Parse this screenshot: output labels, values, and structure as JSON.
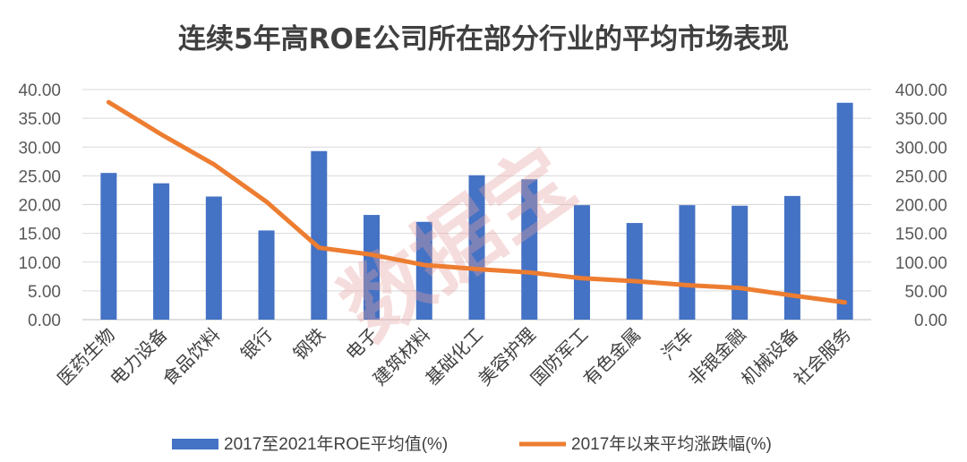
{
  "chart_data": {
    "type": "bar",
    "title": "连续5年高ROE公司所在部分行业的平均市场表现",
    "categories": [
      "医药生物",
      "电力设备",
      "食品饮料",
      "银行",
      "钢铁",
      "电子",
      "建筑材料",
      "基础化工",
      "美容护理",
      "国防军工",
      "有色金属",
      "汽车",
      "非银金融",
      "机械设备",
      "社会服务"
    ],
    "series": [
      {
        "name": "2017至2021年ROE平均值(%)",
        "type": "bar",
        "axis": "left",
        "color": "#4472C4",
        "values": [
          25.5,
          23.7,
          21.4,
          15.5,
          29.3,
          18.2,
          17.0,
          25.1,
          24.4,
          19.9,
          16.8,
          19.9,
          19.8,
          21.5,
          37.7
        ]
      },
      {
        "name": "2017年以来平均涨跌幅(%)",
        "type": "line",
        "axis": "right",
        "color": "#ED7D31",
        "values": [
          378,
          322,
          270,
          205,
          125,
          113,
          95,
          88,
          82,
          72,
          67,
          60,
          55,
          42,
          30
        ]
      }
    ],
    "y_left": {
      "min": 0,
      "max": 40,
      "step": 5,
      "ticks": [
        "0.00",
        "5.00",
        "10.00",
        "15.00",
        "20.00",
        "25.00",
        "30.00",
        "35.00",
        "40.00"
      ]
    },
    "y_right": {
      "min": 0,
      "max": 400,
      "step": 50,
      "ticks": [
        "0.00",
        "50.00",
        "100.00",
        "150.00",
        "200.00",
        "250.00",
        "300.00",
        "350.00",
        "400.00"
      ]
    },
    "grid": true,
    "legend_position": "bottom"
  },
  "watermark": "数据宝"
}
